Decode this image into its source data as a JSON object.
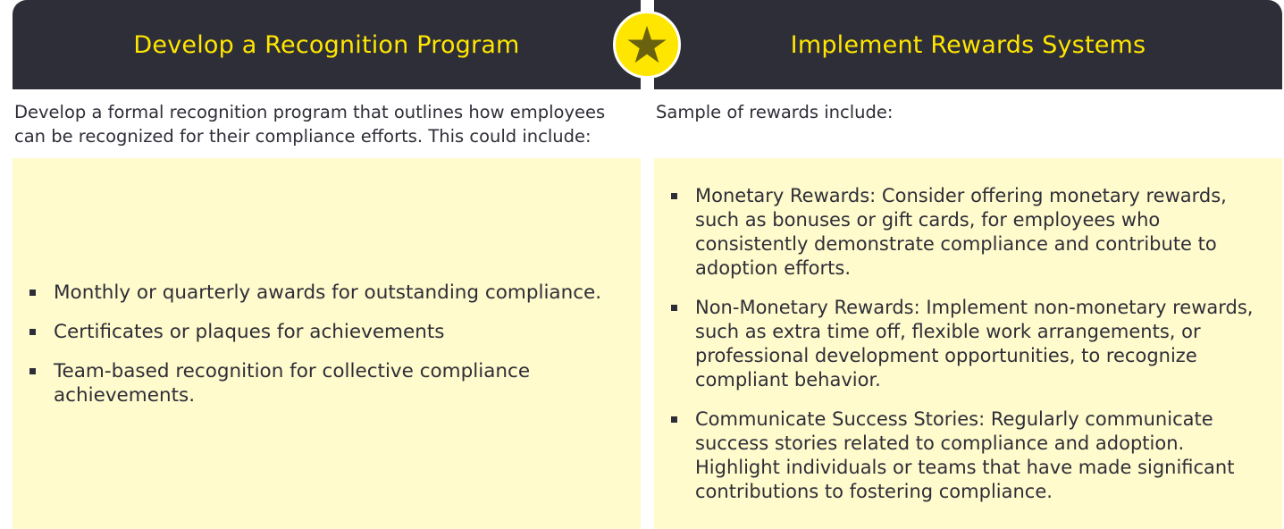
{
  "left": {
    "title": "Develop a Recognition Program",
    "intro": "Develop a formal recognition program that outlines how employees can be recognized for their compliance efforts. This could include:",
    "items": [
      "Monthly or quarterly awards for outstanding compliance.",
      "Certificates or plaques for achievements",
      "Team-based recognition for collective compliance achievements."
    ]
  },
  "right": {
    "title": "Implement Rewards Systems",
    "intro": "Sample of rewards include:",
    "items": [
      "Monetary Rewards: Consider offering monetary rewards, such as bonuses or gift cards, for employees who consistently demonstrate compliance and contribute to adoption efforts.",
      "Non-Monetary Rewards: Implement non-monetary rewards, such as extra time off, flexible work arrangements, or professional development opportunities, to recognize compliant behavior.",
      "Communicate Success Stories: Regularly communicate success stories related to compliance and adoption. Highlight individuals or teams that have made significant contributions to fostering compliance."
    ]
  },
  "icons": {
    "center": "star-icon"
  },
  "colors": {
    "header_bg": "#2e2e38",
    "accent_yellow": "#ffe600",
    "panel_bg": "#fffbcc",
    "text": "#2e2e38"
  }
}
